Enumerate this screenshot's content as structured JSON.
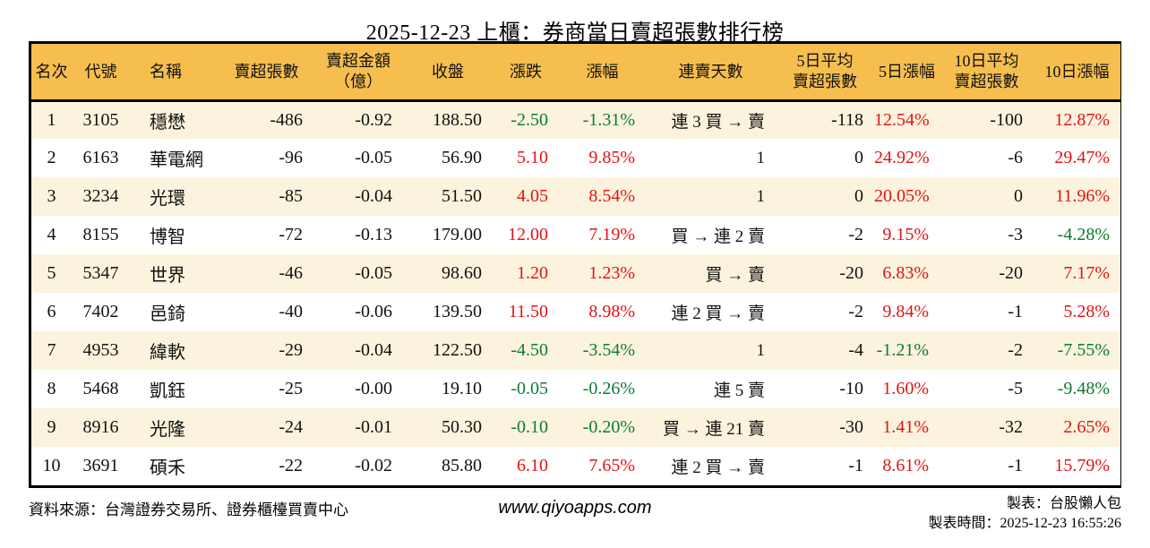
{
  "title": "2025-12-23 上櫃：券商當日賣超張數排行榜",
  "colors": {
    "up": "#e01414",
    "down": "#0b7c33",
    "header_bg": "#f6be4e",
    "row_alt_bg": "#fbf3dd",
    "border": "#000000"
  },
  "chart_data": {
    "type": "table",
    "title": "2025-12-23 上櫃：券商當日賣超張數排行榜",
    "columns": [
      {
        "key": "rank",
        "label": "名次",
        "align": "center"
      },
      {
        "key": "code",
        "label": "代號",
        "align": "center"
      },
      {
        "key": "name",
        "label": "名稱",
        "align": "left"
      },
      {
        "key": "sold",
        "label": "賣超張數",
        "align": "right"
      },
      {
        "key": "amount",
        "label": "賣超金額\n（億）",
        "align": "right"
      },
      {
        "key": "close",
        "label": "收盤",
        "align": "right"
      },
      {
        "key": "chg",
        "label": "漲跌",
        "align": "right",
        "colored": true
      },
      {
        "key": "chg_pct",
        "label": "漲幅",
        "align": "right",
        "colored": true
      },
      {
        "key": "streak",
        "label": "連賣天數",
        "align": "right"
      },
      {
        "key": "avg5",
        "label": "5日平均\n賣超張數",
        "align": "right"
      },
      {
        "key": "pct5",
        "label": "5日漲幅",
        "align": "right",
        "colored": true
      },
      {
        "key": "avg10",
        "label": "10日平均\n賣超張數",
        "align": "right"
      },
      {
        "key": "pct10",
        "label": "10日漲幅",
        "align": "right",
        "colored": true
      }
    ],
    "rows": [
      {
        "rank": "1",
        "code": "3105",
        "name": "穩懋",
        "sold": "-486",
        "amount": "-0.92",
        "close": "188.50",
        "chg": "-2.50",
        "chg_pct": "-1.31%",
        "streak": "連 3 買 → 賣",
        "avg5": "-118",
        "pct5": "12.54%",
        "avg10": "-100",
        "pct10": "12.87%"
      },
      {
        "rank": "2",
        "code": "6163",
        "name": "華電網",
        "sold": "-96",
        "amount": "-0.05",
        "close": "56.90",
        "chg": "5.10",
        "chg_pct": "9.85%",
        "streak": "1",
        "avg5": "0",
        "pct5": "24.92%",
        "avg10": "-6",
        "pct10": "29.47%"
      },
      {
        "rank": "3",
        "code": "3234",
        "name": "光環",
        "sold": "-85",
        "amount": "-0.04",
        "close": "51.50",
        "chg": "4.05",
        "chg_pct": "8.54%",
        "streak": "1",
        "avg5": "0",
        "pct5": "20.05%",
        "avg10": "0",
        "pct10": "11.96%"
      },
      {
        "rank": "4",
        "code": "8155",
        "name": "博智",
        "sold": "-72",
        "amount": "-0.13",
        "close": "179.00",
        "chg": "12.00",
        "chg_pct": "7.19%",
        "streak": "買 → 連 2 賣",
        "avg5": "-2",
        "pct5": "9.15%",
        "avg10": "-3",
        "pct10": "-4.28%"
      },
      {
        "rank": "5",
        "code": "5347",
        "name": "世界",
        "sold": "-46",
        "amount": "-0.05",
        "close": "98.60",
        "chg": "1.20",
        "chg_pct": "1.23%",
        "streak": "買 → 賣",
        "avg5": "-20",
        "pct5": "6.83%",
        "avg10": "-20",
        "pct10": "7.17%"
      },
      {
        "rank": "6",
        "code": "7402",
        "name": "邑錡",
        "sold": "-40",
        "amount": "-0.06",
        "close": "139.50",
        "chg": "11.50",
        "chg_pct": "8.98%",
        "streak": "連 2 買 → 賣",
        "avg5": "-2",
        "pct5": "9.84%",
        "avg10": "-1",
        "pct10": "5.28%"
      },
      {
        "rank": "7",
        "code": "4953",
        "name": "緯軟",
        "sold": "-29",
        "amount": "-0.04",
        "close": "122.50",
        "chg": "-4.50",
        "chg_pct": "-3.54%",
        "streak": "1",
        "avg5": "-4",
        "pct5": "-1.21%",
        "avg10": "-2",
        "pct10": "-7.55%"
      },
      {
        "rank": "8",
        "code": "5468",
        "name": "凱鈺",
        "sold": "-25",
        "amount": "-0.00",
        "close": "19.10",
        "chg": "-0.05",
        "chg_pct": "-0.26%",
        "streak": "連 5 賣",
        "avg5": "-10",
        "pct5": "1.60%",
        "avg10": "-5",
        "pct10": "-9.48%"
      },
      {
        "rank": "9",
        "code": "8916",
        "name": "光隆",
        "sold": "-24",
        "amount": "-0.01",
        "close": "50.30",
        "chg": "-0.10",
        "chg_pct": "-0.20%",
        "streak": "買 → 連 21 賣",
        "avg5": "-30",
        "pct5": "1.41%",
        "avg10": "-32",
        "pct10": "2.65%"
      },
      {
        "rank": "10",
        "code": "3691",
        "name": "碩禾",
        "sold": "-22",
        "amount": "-0.02",
        "close": "85.80",
        "chg": "6.10",
        "chg_pct": "7.65%",
        "streak": "連 2 買 → 賣",
        "avg5": "-1",
        "pct5": "8.61%",
        "avg10": "-1",
        "pct10": "15.79%"
      }
    ]
  },
  "footer": {
    "source": "資料來源：台灣證券交易所、證券櫃檯買賣中心",
    "website": "www.qiyoapps.com",
    "maker": "製表：台股懶人包",
    "made_time": "製表時間：2025-12-23 16:55:26"
  }
}
